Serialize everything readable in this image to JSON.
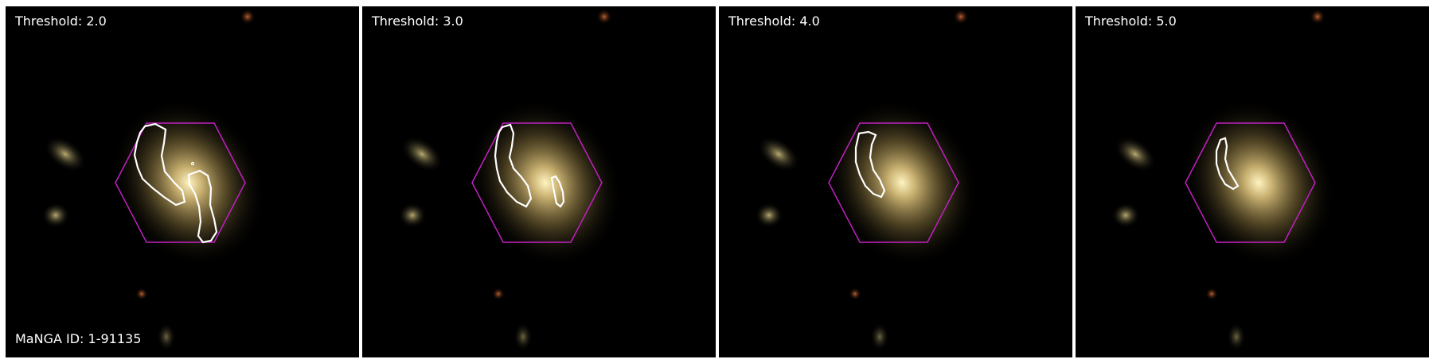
{
  "figure": {
    "manga_id_label": "MaNGA ID: 1-91135",
    "colors": {
      "background": "#000000",
      "hexagon": "#c020c0",
      "contour": "#ffffff",
      "galaxy_core": "#f0e0a0"
    },
    "panels": [
      {
        "threshold_label": "Threshold: 2.0"
      },
      {
        "threshold_label": "Threshold: 3.0"
      },
      {
        "threshold_label": "Threshold: 4.0"
      },
      {
        "threshold_label": "Threshold: 5.0"
      }
    ]
  }
}
